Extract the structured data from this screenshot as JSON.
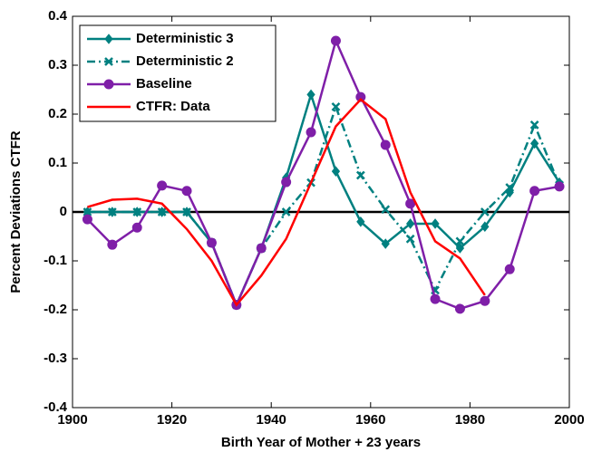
{
  "chart_data": {
    "type": "line",
    "xlabel": "Birth Year of Mother + 23 years",
    "ylabel": "Percent Deviations CTFR",
    "x": [
      1903,
      1908,
      1913,
      1918,
      1923,
      1928,
      1933,
      1938,
      1943,
      1948,
      1953,
      1958,
      1963,
      1968,
      1973,
      1978,
      1983,
      1988,
      1993,
      1998
    ],
    "series": [
      {
        "name": "Deterministic 3",
        "color": "#008080",
        "marker": "diamond",
        "dash": "solid",
        "values": [
          0,
          0,
          0,
          0,
          0,
          -0.063,
          -0.19,
          -0.074,
          0.07,
          0.24,
          0.083,
          -0.02,
          -0.065,
          -0.024,
          -0.024,
          -0.074,
          -0.03,
          0.04,
          0.14,
          0.06
        ]
      },
      {
        "name": "Deterministic 2",
        "color": "#008080",
        "marker": "x",
        "dash": "dashdot",
        "values": [
          0,
          0,
          0,
          0,
          0,
          -0.063,
          -0.19,
          -0.074,
          0,
          0.06,
          0.215,
          0.075,
          0.005,
          -0.055,
          -0.16,
          -0.06,
          0,
          0.05,
          0.178,
          0.055
        ]
      },
      {
        "name": "Baseline",
        "color": "#7f1fa8",
        "marker": "circle",
        "dash": "solid",
        "values": [
          -0.015,
          -0.067,
          -0.032,
          0.054,
          0.043,
          -0.063,
          -0.19,
          -0.074,
          0.061,
          0.163,
          0.35,
          0.235,
          0.137,
          0.017,
          -0.178,
          -0.198,
          -0.182,
          -0.117,
          0.043,
          0.052
        ]
      },
      {
        "name": "CTFR: Data",
        "color": "#ff0000",
        "marker": "none",
        "dash": "solid",
        "values": [
          0.01,
          0.025,
          0.027,
          0.017,
          -0.035,
          -0.1,
          -0.19,
          -0.13,
          -0.055,
          0.06,
          0.175,
          0.23,
          0.19,
          0.04,
          -0.06,
          -0.095,
          -0.17,
          null,
          null,
          null
        ]
      }
    ],
    "xlim": [
      1900,
      2000
    ],
    "xticks": [
      1900,
      1920,
      1940,
      1960,
      1980,
      2000
    ],
    "ylim": [
      -0.4,
      0.4
    ],
    "yticks": [
      -0.4,
      -0.3,
      -0.2,
      -0.1,
      0,
      0.1,
      0.2,
      0.3,
      0.4
    ],
    "zero_line": true,
    "legend": "upper-left"
  }
}
